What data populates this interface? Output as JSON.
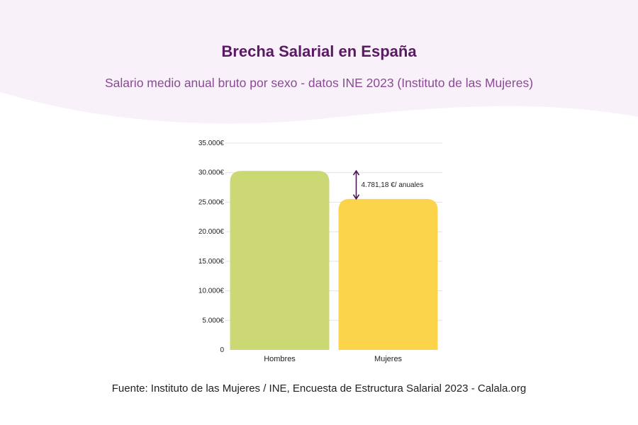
{
  "title": "Brecha Salarial en España",
  "subtitle": "Salario medio anual bruto por sexo - datos INE 2023 (Instituto de las Mujeres)",
  "footnote": "Fuente: Instituto de las Mujeres / INE, Encuesta de Estructura Salarial 2023 - Calala.org",
  "colors": {
    "background_band": "#f8f1f9",
    "title": "#5a1a63",
    "subtitle": "#8a4a94",
    "bar_hombres": "#cbd873",
    "bar_mujeres": "#fbd44b",
    "arrow": "#4a1652",
    "grid": "#e2e2e2"
  },
  "chart_data": {
    "type": "bar",
    "categories": [
      "Hombres",
      "Mujeres"
    ],
    "values": [
      30300,
      25550
    ],
    "ylim": [
      0,
      35000
    ],
    "yticks": [
      0,
      5000,
      10000,
      15000,
      20000,
      25000,
      30000,
      35000
    ],
    "ytick_labels": [
      "0",
      "5.000€",
      "10.000€",
      "15.000€",
      "20.000€",
      "25.000€",
      "30.000€",
      "35.000€"
    ],
    "grid": true,
    "annotation": {
      "text": "4.781,18 €/ anuales",
      "from_value": 30300,
      "to_value": 25550
    }
  }
}
